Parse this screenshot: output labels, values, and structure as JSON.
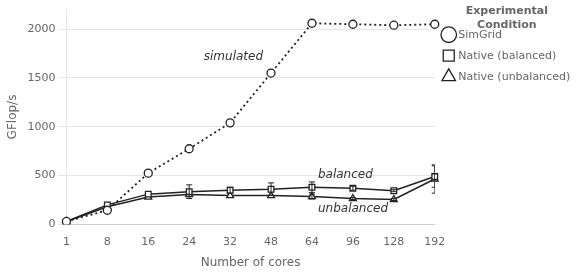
{
  "chart_data": {
    "type": "line",
    "categories": [
      "1",
      "8",
      "16",
      "24",
      "32",
      "48",
      "64",
      "96",
      "128",
      "192"
    ],
    "series": [
      {
        "name": "SimGrid",
        "color": "#222222",
        "marker": "circle",
        "line_style": "dotted",
        "values": [
          30,
          145,
          525,
          775,
          1040,
          1550,
          2060,
          2050,
          2040,
          2050
        ]
      },
      {
        "name": "Native (balanced)",
        "color": "#222222",
        "marker": "square",
        "line_style": "solid",
        "values": [
          30,
          200,
          310,
          335,
          350,
          360,
          380,
          370,
          345,
          490
        ],
        "yerr": [
          0,
          0,
          0,
          70,
          30,
          65,
          55,
          20,
          10,
          110
        ]
      },
      {
        "name": "Native (unbalanced)",
        "color": "#222222",
        "marker": "triangle",
        "line_style": "solid",
        "values": [
          28,
          180,
          280,
          305,
          295,
          295,
          285,
          265,
          255,
          465
        ],
        "yerr": [
          0,
          0,
          0,
          0,
          0,
          0,
          25,
          10,
          10,
          145
        ]
      }
    ],
    "xlabel": "Number of cores",
    "ylabel": "GFlop/s",
    "ylim": [
      0,
      2200
    ],
    "yticks": [
      0,
      500,
      1000,
      1500,
      2000
    ],
    "grid": true,
    "legend": "right",
    "legend_title": "Experimental\nCondition",
    "annotations": [
      "simulated",
      "balanced",
      "unbalanced"
    ]
  }
}
